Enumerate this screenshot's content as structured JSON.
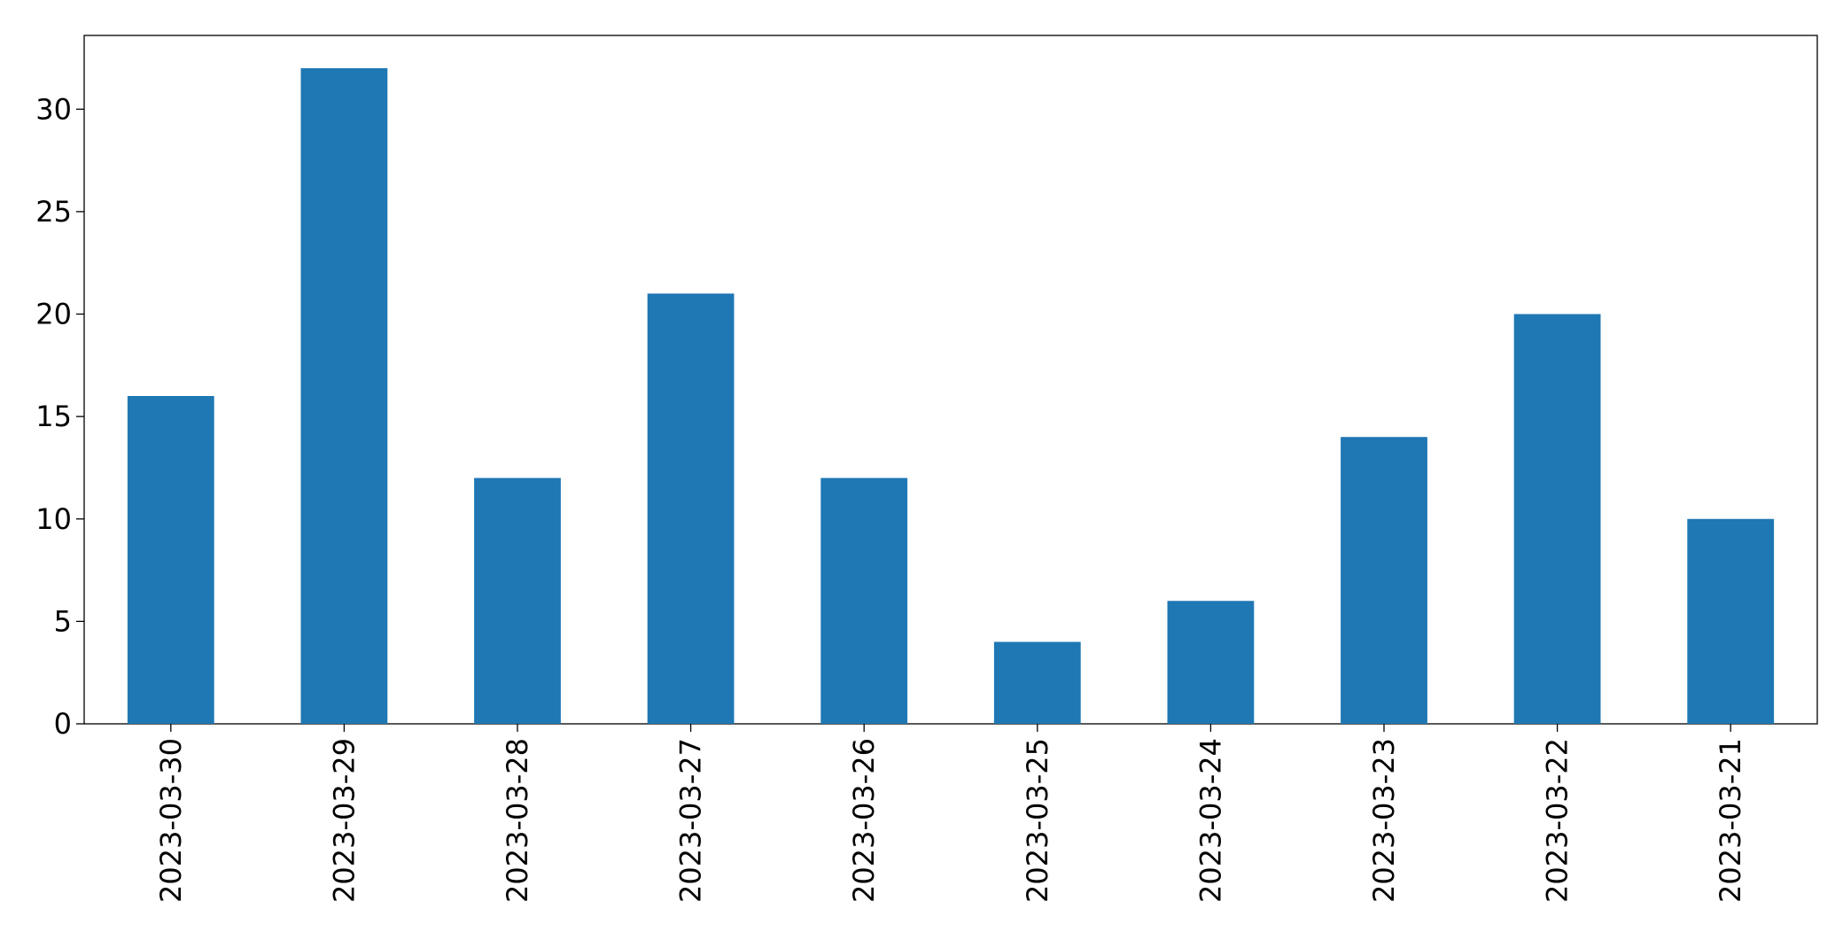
{
  "chart_data": {
    "type": "bar",
    "categories": [
      "2023-03-30",
      "2023-03-29",
      "2023-03-28",
      "2023-03-27",
      "2023-03-26",
      "2023-03-25",
      "2023-03-24",
      "2023-03-23",
      "2023-03-22",
      "2023-03-21"
    ],
    "values": [
      16,
      32,
      12,
      21,
      12,
      4,
      6,
      14,
      20,
      10
    ],
    "color": "#1f77b4",
    "ylim": [
      0,
      33.6
    ],
    "yticks": [
      0,
      5,
      10,
      15,
      20,
      25,
      30
    ],
    "grid": false
  }
}
